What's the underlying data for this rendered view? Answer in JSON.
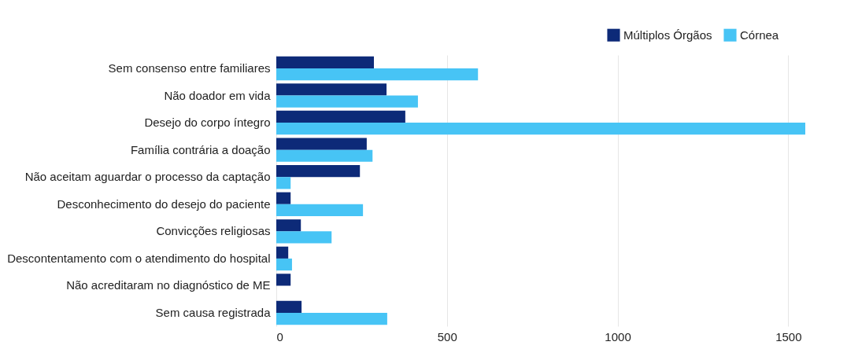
{
  "chart_data": {
    "type": "bar",
    "orientation": "horizontal",
    "categories": [
      "Sem consenso entre familiares",
      "Não doador em vida",
      "Desejo do corpo íntegro",
      "Família contrária a doação",
      "Não aceitam aguardar o processo da captação",
      "Desconhecimento do desejo do paciente",
      "Convicções religiosas",
      "Descontentamento com o atendimento do hospital",
      "Não acreditaram no diagnóstico de ME",
      "Sem causa registrada"
    ],
    "series": [
      {
        "name": "Múltiplos Órgãos",
        "color": "#0d2a78",
        "values": [
          286,
          323,
          378,
          265,
          245,
          42,
          72,
          35,
          42,
          74
        ]
      },
      {
        "name": "Córnea",
        "color": "#47c4f5",
        "values": [
          591,
          415,
          1550,
          282,
          42,
          254,
          162,
          46,
          0,
          325
        ]
      }
    ],
    "xlim": [
      0,
      1550
    ],
    "xticks": [
      0,
      500,
      1000,
      1500
    ],
    "grid": "x",
    "legend": "top right"
  }
}
